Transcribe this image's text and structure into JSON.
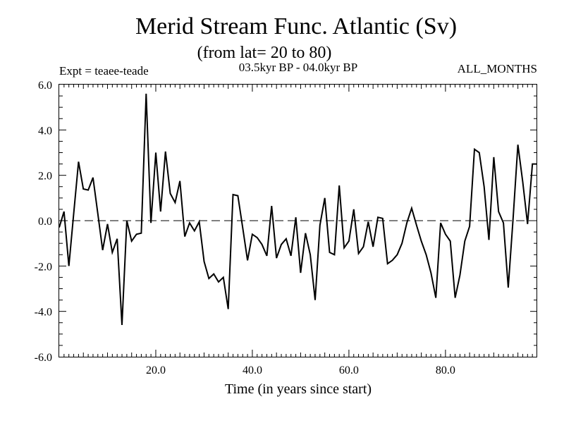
{
  "chart_data": {
    "type": "line",
    "title": "Merid Stream Func. Atlantic (Sv)",
    "subtitle": "(from lat= 20 to 80)",
    "experiment": "Expt = teaee-teade",
    "period": "03.5kyr BP - 04.0kyr BP",
    "months": "ALL_MONTHS",
    "xlabel": "Time (in years since start)",
    "ylabel": "",
    "xlim": [
      0,
      99
    ],
    "ylim": [
      -6,
      6
    ],
    "xticks": [
      {
        "value": 20,
        "label": "20.0"
      },
      {
        "value": 40,
        "label": "40.0"
      },
      {
        "value": 60,
        "label": "60.0"
      },
      {
        "value": 80,
        "label": "80.0"
      }
    ],
    "yticks": [
      {
        "value": 6,
        "label": "6.0"
      },
      {
        "value": 4,
        "label": "4.0"
      },
      {
        "value": 2,
        "label": "2.0"
      },
      {
        "value": 0,
        "label": "0.0"
      },
      {
        "value": -2,
        "label": "-2.0"
      },
      {
        "value": -4,
        "label": "-4.0"
      },
      {
        "value": -6,
        "label": "-6.0"
      }
    ],
    "zero_line": {
      "value": 0,
      "style": "dashed"
    },
    "series": [
      {
        "name": "teaee-teade",
        "color": "#000000",
        "x": [
          0,
          1,
          2,
          3,
          4,
          5,
          6,
          7,
          8,
          9,
          10,
          11,
          12,
          13,
          14,
          15,
          16,
          17,
          18,
          19,
          20,
          21,
          22,
          23,
          24,
          25,
          26,
          27,
          28,
          29,
          30,
          31,
          32,
          33,
          34,
          35,
          36,
          37,
          38,
          39,
          40,
          41,
          42,
          43,
          44,
          45,
          46,
          47,
          48,
          49,
          50,
          51,
          52,
          53,
          54,
          55,
          56,
          57,
          58,
          59,
          60,
          61,
          62,
          63,
          64,
          65,
          66,
          67,
          68,
          69,
          70,
          71,
          72,
          73,
          74,
          75,
          76,
          77,
          78,
          79,
          80,
          81,
          82,
          83,
          84,
          85,
          86,
          87,
          88,
          89,
          90,
          91,
          92,
          93,
          94,
          95,
          96,
          97,
          98,
          99
        ],
        "values": [
          -0.3,
          0.4,
          -2.0,
          0.3,
          2.6,
          1.4,
          1.35,
          1.9,
          0.3,
          -1.3,
          -0.15,
          -1.4,
          -0.8,
          -4.6,
          0.0,
          -0.9,
          -0.6,
          -0.55,
          5.6,
          -0.1,
          3.0,
          0.4,
          3.05,
          1.2,
          0.8,
          1.75,
          -0.7,
          -0.1,
          -0.45,
          -0.05,
          -1.8,
          -2.55,
          -2.35,
          -2.7,
          -2.5,
          -3.9,
          1.15,
          1.1,
          -0.3,
          -1.75,
          -0.6,
          -0.75,
          -1.05,
          -1.55,
          0.65,
          -1.65,
          -1.05,
          -0.8,
          -1.55,
          0.15,
          -2.3,
          -0.55,
          -1.5,
          -3.5,
          -0.2,
          1.0,
          -1.4,
          -1.5,
          1.55,
          -1.2,
          -0.9,
          0.5,
          -1.45,
          -1.15,
          -0.05,
          -1.15,
          0.15,
          0.1,
          -1.9,
          -1.75,
          -1.5,
          -1.0,
          -0.1,
          0.55,
          -0.2,
          -0.9,
          -1.5,
          -2.3,
          -3.4,
          -0.1,
          -0.6,
          -0.9,
          -3.4,
          -2.4,
          -0.9,
          -0.25,
          3.15,
          3.0,
          1.5,
          -0.85,
          2.8,
          0.4,
          -0.1,
          -2.95,
          0.1,
          3.35,
          1.7,
          -0.15,
          2.5,
          2.5
        ]
      }
    ]
  }
}
